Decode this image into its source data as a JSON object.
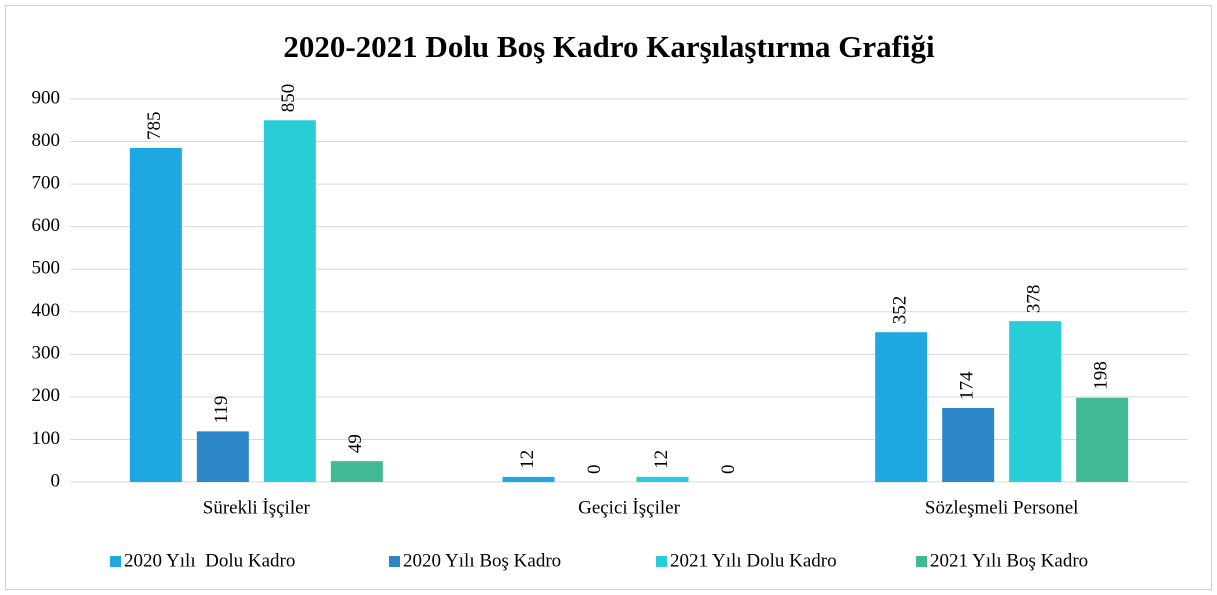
{
  "chart_data": {
    "type": "bar",
    "title": "2020-2021 Dolu Boş Kadro Karşılaştırma Grafiği",
    "categories": [
      "Sürekli İşçiler",
      "Geçici İşçiler",
      "Sözleşmeli Personel"
    ],
    "series": [
      {
        "name": "2020 Yılı  Dolu Kadro",
        "color": "#1fa7e1",
        "values": [
          785,
          12,
          352
        ]
      },
      {
        "name": "2020 Yılı Boş Kadro",
        "color": "#2c86c8",
        "values": [
          119,
          0,
          174
        ]
      },
      {
        "name": "2021 Yılı Dolu Kadro",
        "color": "#29cdd8",
        "values": [
          850,
          12,
          378
        ]
      },
      {
        "name": "2021 Yılı Boş Kadro",
        "color": "#41b995",
        "values": [
          49,
          0,
          198
        ]
      }
    ],
    "ylim": [
      0,
      900
    ],
    "yticks": [
      0,
      100,
      200,
      300,
      400,
      500,
      600,
      700,
      800,
      900
    ],
    "grid": true,
    "legend": "bottom"
  }
}
